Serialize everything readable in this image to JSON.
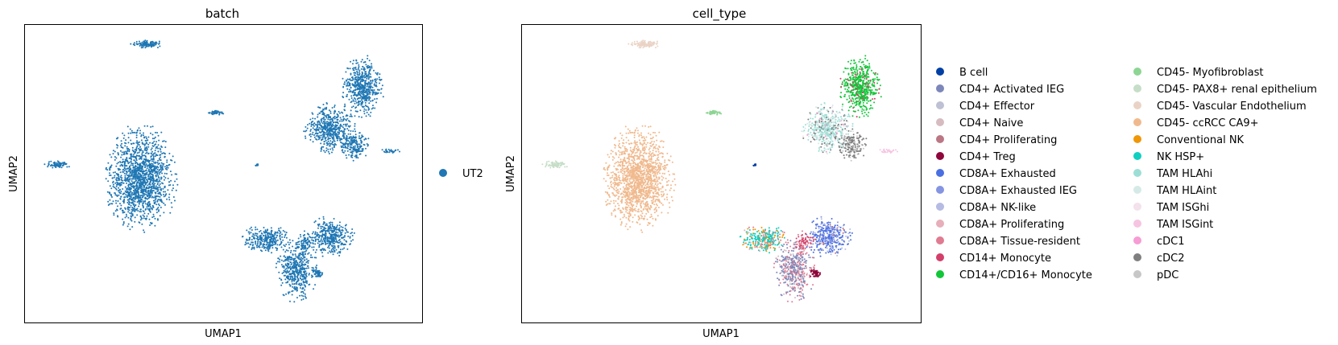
{
  "chart_data": [
    {
      "type": "scatter",
      "title": "batch",
      "xlabel": "UMAP1",
      "ylabel": "UMAP2",
      "grid": false,
      "legend_placement": "right",
      "legend": [
        {
          "label": "UT2",
          "color": "#1f77b4"
        }
      ]
    },
    {
      "type": "scatter",
      "title": "cell_type",
      "xlabel": "UMAP1",
      "ylabel": "UMAP2",
      "grid": false,
      "legend_placement": "right",
      "legend": [
        {
          "label": "B cell",
          "color": "#023fa5"
        },
        {
          "label": "CD4+ Activated IEG",
          "color": "#7d87b9"
        },
        {
          "label": "CD4+ Effector",
          "color": "#bec1d4"
        },
        {
          "label": "CD4+ Naive",
          "color": "#d6bcc0"
        },
        {
          "label": "CD4+ Proliferating",
          "color": "#bb7784"
        },
        {
          "label": "CD4+ Treg",
          "color": "#8e063b"
        },
        {
          "label": "CD8A+ Exhausted",
          "color": "#4a6fe3"
        },
        {
          "label": "CD8A+ Exhausted IEG",
          "color": "#8595e1"
        },
        {
          "label": "CD8A+ NK-like",
          "color": "#b5bbe3"
        },
        {
          "label": "CD8A+ Proliferating",
          "color": "#e6afb9"
        },
        {
          "label": "CD8A+ Tissue-resident",
          "color": "#e07b91"
        },
        {
          "label": "CD14+ Monocyte",
          "color": "#d33f6a"
        },
        {
          "label": "CD14+/CD16+ Monocyte",
          "color": "#11c638"
        },
        {
          "label": "CD45- Myofibroblast",
          "color": "#8dd593"
        },
        {
          "label": "CD45- PAX8+ renal epithelium",
          "color": "#c6dec7"
        },
        {
          "label": "CD45- Vascular Endothelium",
          "color": "#ead3c6"
        },
        {
          "label": "CD45- ccRCC CA9+",
          "color": "#f0b98d"
        },
        {
          "label": "Conventional NK",
          "color": "#ef9708"
        },
        {
          "label": "NK HSP+",
          "color": "#0fcfc0"
        },
        {
          "label": "TAM HLAhi",
          "color": "#9cded6"
        },
        {
          "label": "TAM HLAint",
          "color": "#d5eae7"
        },
        {
          "label": "TAM ISGhi",
          "color": "#f3e1eb"
        },
        {
          "label": "TAM ISGint",
          "color": "#f6c4e1"
        },
        {
          "label": "cDC1",
          "color": "#f79cd4"
        },
        {
          "label": "cDC2",
          "color": "#7f7f7f"
        },
        {
          "label": "pDC",
          "color": "#c7c7c7"
        }
      ]
    }
  ]
}
